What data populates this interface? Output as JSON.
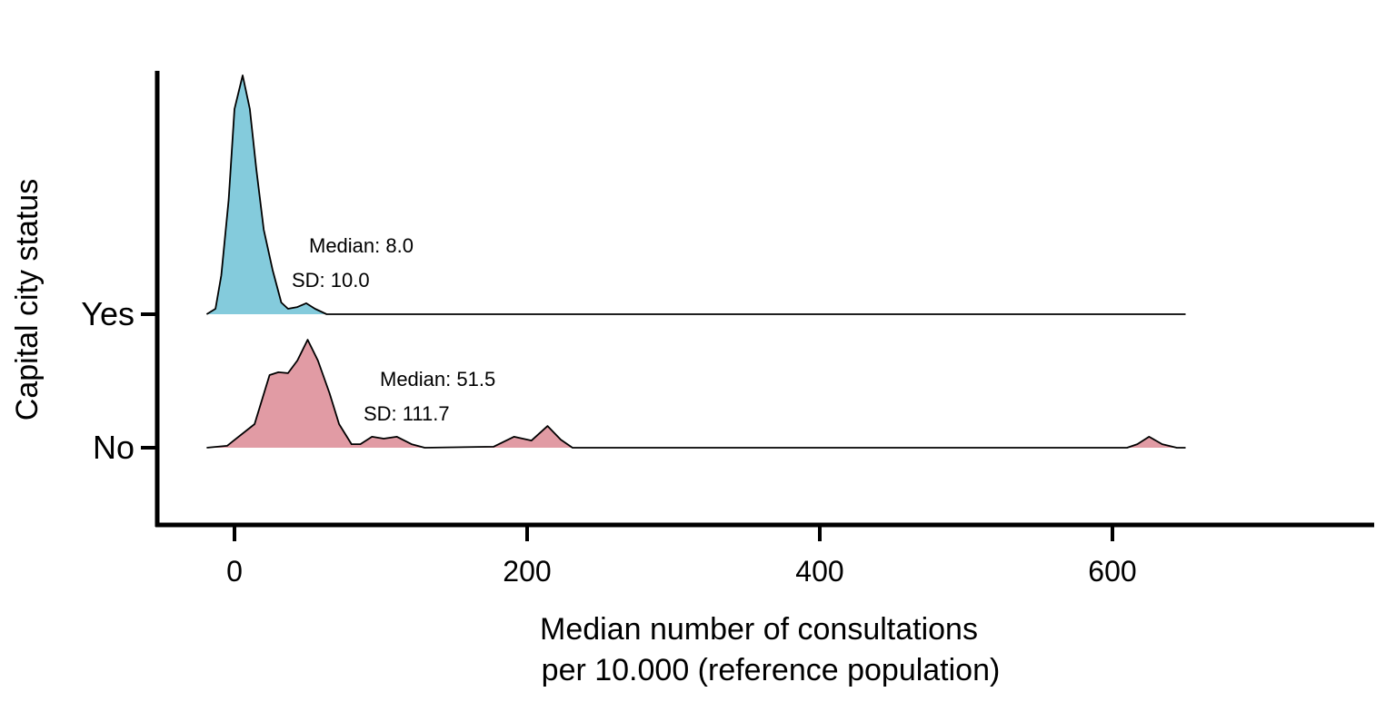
{
  "chart_data": {
    "type": "ridgeline-density",
    "xlabel_lines": [
      "Median number of consultations",
      "per 10.000 (reference population)"
    ],
    "ylabel": "Capital city status",
    "xlim": [
      -53,
      785
    ],
    "x_ticks": [
      0,
      200,
      400,
      600
    ],
    "x_tick_labels": [
      "0",
      "200",
      "400",
      "600"
    ],
    "grid": false,
    "legend": "none",
    "series": [
      {
        "name": "Yes",
        "color": "#84CBDC",
        "annotation": {
          "median": "Median: 8.0",
          "sd": "SD: 10.0"
        },
        "density_relative": [
          [
            -19,
            0
          ],
          [
            -13,
            0.023
          ],
          [
            -9,
            0.163
          ],
          [
            -4,
            0.479
          ],
          [
            0,
            0.859
          ],
          [
            5.6,
            1.0
          ],
          [
            10.5,
            0.859
          ],
          [
            15,
            0.605
          ],
          [
            20,
            0.354
          ],
          [
            26,
            0.186
          ],
          [
            32,
            0.049
          ],
          [
            36.6,
            0.023
          ],
          [
            43,
            0.03
          ],
          [
            49,
            0.046
          ],
          [
            55,
            0.023
          ],
          [
            63,
            0
          ],
          [
            650,
            0
          ]
        ]
      },
      {
        "name": "No",
        "color": "#E19BA4",
        "annotation": {
          "median": "Median: 51.5",
          "sd": "SD: 111.7"
        },
        "density_relative": [
          [
            -19,
            0
          ],
          [
            -5,
            0.008
          ],
          [
            13.7,
            0.099
          ],
          [
            24,
            0.304
          ],
          [
            30,
            0.316
          ],
          [
            36.6,
            0.312
          ],
          [
            43,
            0.365
          ],
          [
            50,
            0.452
          ],
          [
            57,
            0.365
          ],
          [
            65,
            0.228
          ],
          [
            71.5,
            0.099
          ],
          [
            80,
            0.015
          ],
          [
            86,
            0.015
          ],
          [
            94,
            0.046
          ],
          [
            102,
            0.038
          ],
          [
            111,
            0.046
          ],
          [
            121,
            0.015
          ],
          [
            130,
            0
          ],
          [
            177,
            0.004
          ],
          [
            191,
            0.046
          ],
          [
            203,
            0.03
          ],
          [
            214,
            0.091
          ],
          [
            223,
            0.034
          ],
          [
            231,
            0
          ],
          [
            610,
            0
          ],
          [
            617,
            0.015
          ],
          [
            625,
            0.046
          ],
          [
            634,
            0.015
          ],
          [
            644,
            0
          ],
          [
            650,
            0
          ]
        ]
      }
    ]
  }
}
